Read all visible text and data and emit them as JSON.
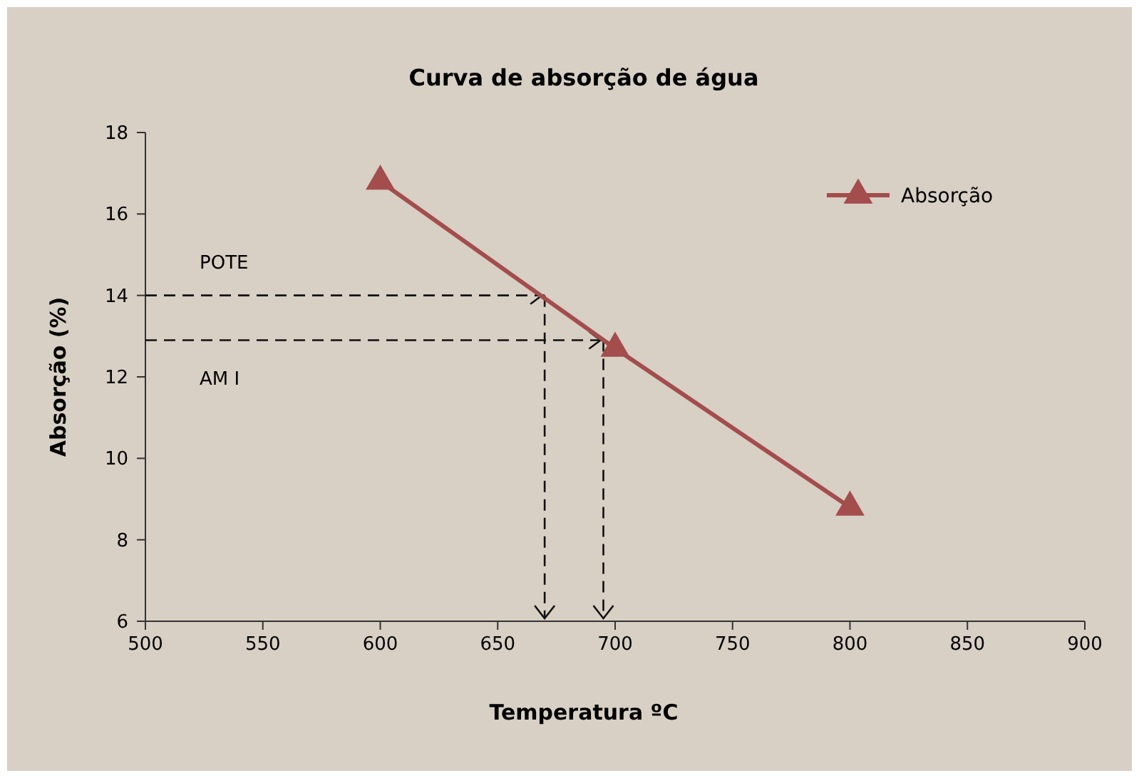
{
  "chart_data": {
    "type": "line",
    "title": "Curva de absorção de água",
    "xlabel": "Temperatura ºC",
    "ylabel": "Absorção (%)",
    "x": [
      600,
      700,
      800
    ],
    "series": [
      {
        "name": "Absorção",
        "color": "#a34d4d",
        "values": [
          16.8,
          12.7,
          8.8
        ]
      }
    ],
    "xlim": [
      500,
      900
    ],
    "xticks": [
      500,
      550,
      600,
      650,
      700,
      750,
      800,
      850,
      900
    ],
    "ylim": [
      6,
      18
    ],
    "yticks": [
      6,
      8,
      10,
      12,
      14,
      16,
      18
    ],
    "marker": "triangle",
    "line_style": "solid",
    "legend": "top right",
    "grid": false,
    "ref_lines": [
      {
        "axis": "y",
        "value": 14,
        "label": "POTE",
        "color": "#111111",
        "line_style": "dashed"
      },
      {
        "axis": "y",
        "value": 12.9,
        "label": "AM I",
        "color": "#111111",
        "line_style": "dashed"
      },
      {
        "axis": "x",
        "value": 670,
        "label": null,
        "color": "#111111",
        "line_style": "dashed"
      },
      {
        "axis": "x",
        "value": 695,
        "label": null,
        "color": "#111111",
        "line_style": "dashed"
      }
    ]
  }
}
